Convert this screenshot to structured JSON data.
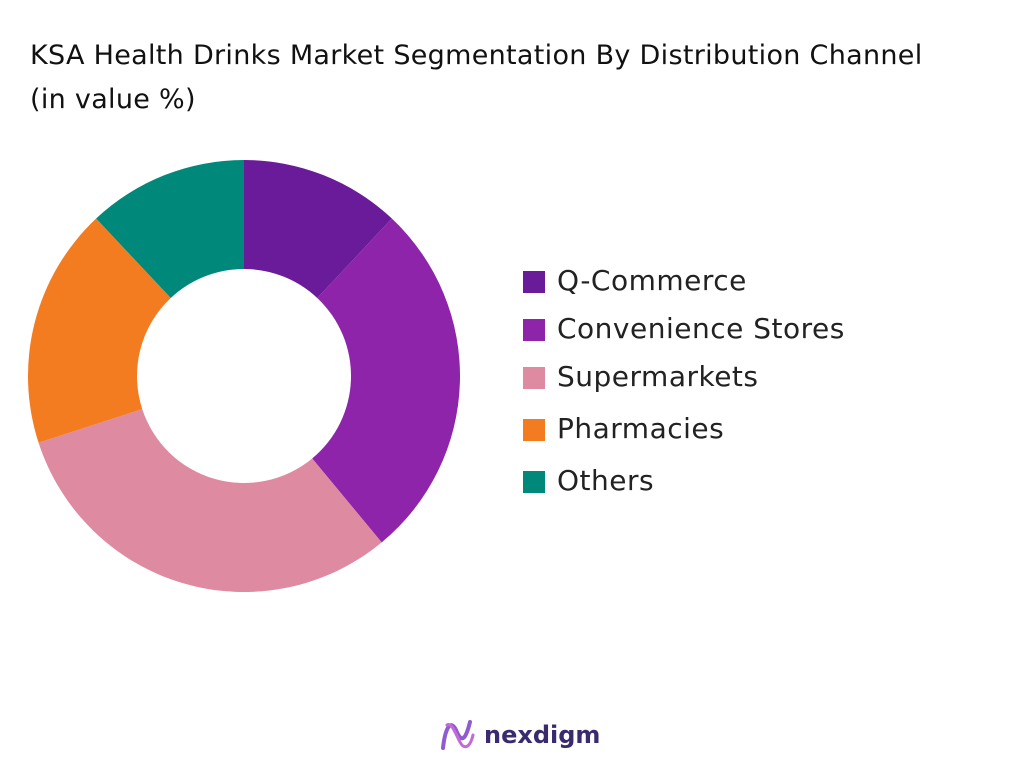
{
  "chart_data": {
    "type": "donut",
    "title": "KSA Health Drinks Market Segmentation By Distribution Channel (in value %)",
    "categories": [
      "Q-Commerce",
      "Convenience Stores",
      "Supermarkets",
      "Pharmacies",
      "Others"
    ],
    "values": [
      12,
      27,
      31,
      18,
      12
    ],
    "colors": [
      "#6a1b9a",
      "#8e24aa",
      "#de8aa0",
      "#f47c20",
      "#00897b"
    ],
    "legend": "right"
  },
  "brand": "nexdigm"
}
